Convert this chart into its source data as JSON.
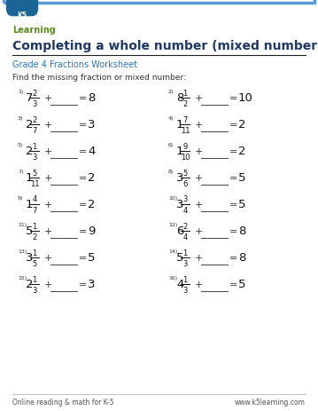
{
  "title": "Completing a whole number (mixed numbers)",
  "subtitle": "Grade 4 Fractions Worksheet",
  "instruction": "Find the missing fraction or mixed number:",
  "border_color": "#5b9bd5",
  "title_color": "#1f3864",
  "subtitle_color": "#2e74b5",
  "text_color": "#333333",
  "bg_color": "#ffffff",
  "footer_left": "Online reading & math for K-5",
  "footer_right": "www.k5learning.com",
  "problems": [
    {
      "num": "1)",
      "whole": "7",
      "numer": "2",
      "denom": "3",
      "result": "8"
    },
    {
      "num": "2)",
      "whole": "8",
      "numer": "1",
      "denom": "2",
      "result": "10"
    },
    {
      "num": "3)",
      "whole": "2",
      "numer": "2",
      "denom": "7",
      "result": "3"
    },
    {
      "num": "4)",
      "whole": "1",
      "numer": "7",
      "denom": "11",
      "result": "2"
    },
    {
      "num": "5)",
      "whole": "2",
      "numer": "1",
      "denom": "3",
      "result": "4"
    },
    {
      "num": "6)",
      "whole": "1",
      "numer": "9",
      "denom": "10",
      "result": "2"
    },
    {
      "num": "7)",
      "whole": "1",
      "numer": "5",
      "denom": "11",
      "result": "2"
    },
    {
      "num": "8)",
      "whole": "3",
      "numer": "5",
      "denom": "6",
      "result": "5"
    },
    {
      "num": "9)",
      "whole": "1",
      "numer": "4",
      "denom": "7",
      "result": "2"
    },
    {
      "num": "10)",
      "whole": "3",
      "numer": "3",
      "denom": "4",
      "result": "5"
    },
    {
      "num": "11)",
      "whole": "5",
      "numer": "1",
      "denom": "2",
      "result": "9"
    },
    {
      "num": "12)",
      "whole": "6",
      "numer": "2",
      "denom": "4",
      "result": "8"
    },
    {
      "num": "13)",
      "whole": "3",
      "numer": "1",
      "denom": "5",
      "result": "5"
    },
    {
      "num": "14)",
      "whole": "5",
      "numer": "1",
      "denom": "3",
      "result": "8"
    },
    {
      "num": "15)",
      "whole": "2",
      "numer": "1",
      "denom": "3",
      "result": "3"
    },
    {
      "num": "16)",
      "whole": "4",
      "numer": "1",
      "denom": "3",
      "result": "5"
    }
  ]
}
